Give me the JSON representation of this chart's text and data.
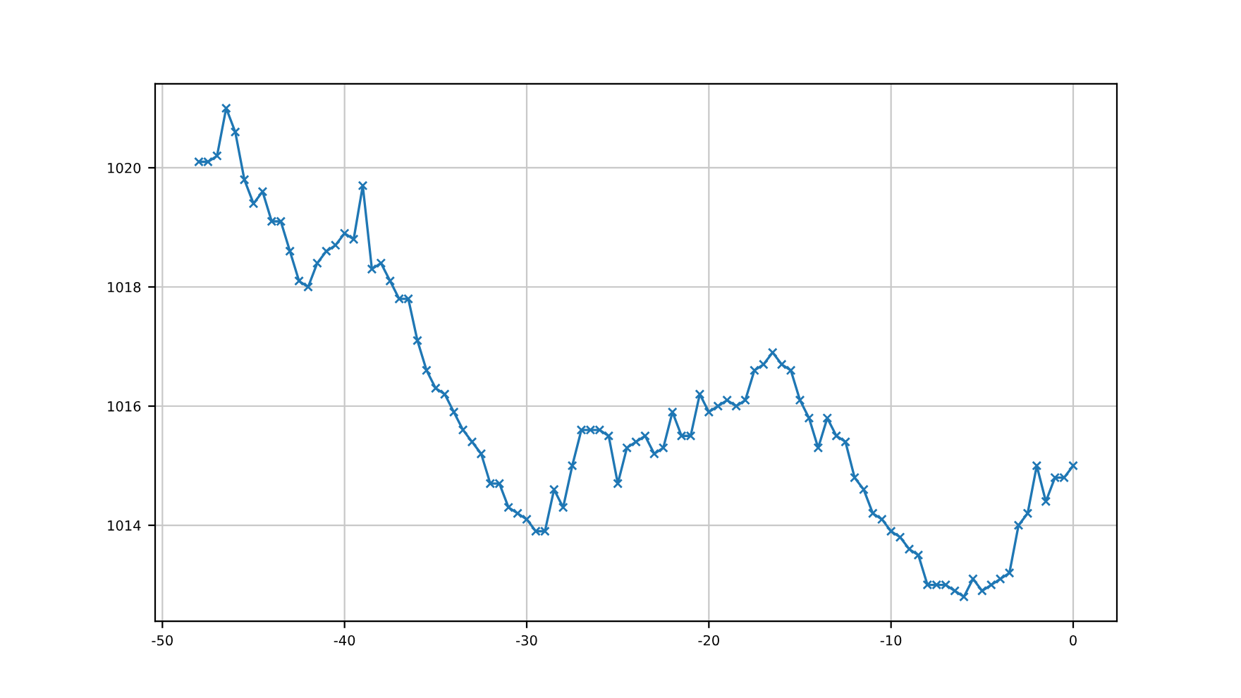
{
  "chart_data": {
    "type": "line",
    "marker": "cross",
    "grid": true,
    "color": "#1f77b4",
    "x": [
      -48,
      -47.5,
      -47,
      -46.5,
      -46,
      -45.5,
      -45,
      -44.5,
      -44,
      -43.5,
      -43,
      -42.5,
      -42,
      -41.5,
      -41,
      -40.5,
      -40,
      -39.5,
      -39,
      -38.5,
      -38,
      -37.5,
      -37,
      -36.5,
      -36,
      -35.5,
      -35,
      -34.5,
      -34,
      -33.5,
      -33,
      -32.5,
      -32,
      -31.5,
      -31,
      -30.5,
      -30,
      -29.5,
      -29,
      -28.5,
      -28,
      -27.5,
      -27,
      -26.5,
      -26,
      -25.5,
      -25,
      -24.5,
      -24,
      -23.5,
      -23,
      -22.5,
      -22,
      -21.5,
      -21,
      -20.5,
      -20,
      -19.5,
      -19,
      -18.5,
      -18,
      -17.5,
      -17,
      -16.5,
      -16,
      -15.5,
      -15,
      -14.5,
      -14,
      -13.5,
      -13,
      -12.5,
      -12,
      -11.5,
      -11,
      -10.5,
      -10,
      -9.5,
      -9,
      -8.5,
      -8,
      -7.5,
      -7,
      -6.5,
      -6,
      -5.5,
      -5,
      -4.5,
      -4,
      -3.5,
      -3,
      -2.5,
      -2,
      -1.5,
      -1,
      -0.5,
      0
    ],
    "values": [
      1020.1,
      1020.1,
      1020.2,
      1021.0,
      1020.6,
      1019.8,
      1019.4,
      1019.6,
      1019.1,
      1019.1,
      1018.6,
      1018.1,
      1018.0,
      1018.4,
      1018.6,
      1018.7,
      1018.9,
      1018.8,
      1019.7,
      1018.3,
      1018.4,
      1018.1,
      1017.8,
      1017.8,
      1017.1,
      1016.6,
      1016.3,
      1016.2,
      1015.9,
      1015.6,
      1015.4,
      1015.2,
      1014.7,
      1014.7,
      1014.3,
      1014.2,
      1014.1,
      1013.9,
      1013.9,
      1014.6,
      1014.3,
      1015.0,
      1015.6,
      1015.6,
      1015.6,
      1015.5,
      1014.7,
      1015.3,
      1015.4,
      1015.5,
      1015.2,
      1015.3,
      1015.9,
      1015.5,
      1015.5,
      1016.2,
      1015.9,
      1016.0,
      1016.1,
      1016.0,
      1016.1,
      1016.6,
      1016.7,
      1016.9,
      1016.7,
      1016.6,
      1016.1,
      1015.8,
      1015.3,
      1015.8,
      1015.5,
      1015.4,
      1014.8,
      1014.6,
      1014.2,
      1014.1,
      1013.9,
      1013.8,
      1013.6,
      1013.5,
      1013.0,
      1013.0,
      1013.0,
      1012.9,
      1012.8,
      1013.1,
      1012.9,
      1013.0,
      1013.1,
      1013.2,
      1014.0,
      1014.2,
      1015.0,
      1014.4,
      1014.8,
      1014.8,
      1015.0
    ],
    "xlim": [
      -50.4,
      2.4
    ],
    "xticks": [
      -50,
      -40,
      -30,
      -20,
      -10,
      0
    ],
    "ylim": [
      1012.39,
      1021.41
    ],
    "yticks": [
      1014,
      1016,
      1018,
      1020
    ]
  }
}
